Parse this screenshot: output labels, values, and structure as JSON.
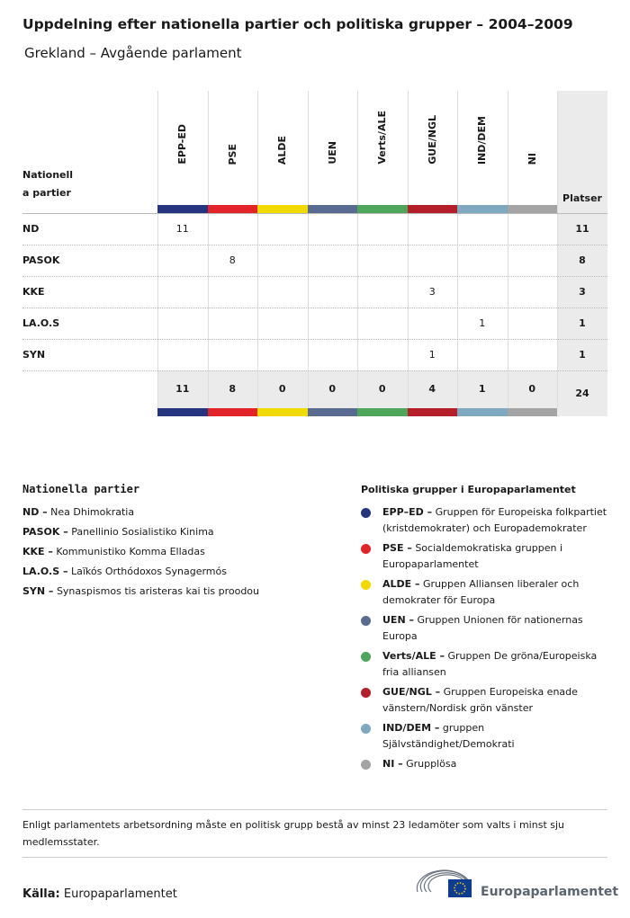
{
  "title": "Uppdelning efter nationella partier och politiska grupper – 2004–2009",
  "subtitle": "Grekland – Avgående parlament",
  "table": {
    "row_header": [
      "Nationell",
      "a partier"
    ],
    "total_header": "Platser",
    "groups": [
      {
        "abbr": "EPP-ED",
        "color": "#26357f"
      },
      {
        "abbr": "PSE",
        "color": "#e2242a"
      },
      {
        "abbr": "ALDE",
        "color": "#f0da00"
      },
      {
        "abbr": "UEN",
        "color": "#5a6b92"
      },
      {
        "abbr": "Verts/ALE",
        "color": "#4ea65a"
      },
      {
        "abbr": "GUE/NGL",
        "color": "#b51f29"
      },
      {
        "abbr": "IND/DEM",
        "color": "#7ea9c1"
      },
      {
        "abbr": "NI",
        "color": "#a4a4a4"
      }
    ],
    "rows": [
      {
        "name": "ND",
        "cells": [
          11,
          null,
          null,
          null,
          null,
          null,
          null,
          null
        ],
        "total": 11
      },
      {
        "name": "PASOK",
        "cells": [
          null,
          8,
          null,
          null,
          null,
          null,
          null,
          null
        ],
        "total": 8
      },
      {
        "name": "KKE",
        "cells": [
          null,
          null,
          null,
          null,
          null,
          3,
          null,
          null
        ],
        "total": 3
      },
      {
        "name": "LA.O.S",
        "cells": [
          null,
          null,
          null,
          null,
          null,
          null,
          1,
          null
        ],
        "total": 1
      },
      {
        "name": "SYN",
        "cells": [
          null,
          null,
          null,
          null,
          null,
          1,
          null,
          null
        ],
        "total": 1
      }
    ],
    "column_totals": [
      11,
      8,
      0,
      0,
      0,
      4,
      1,
      0
    ],
    "grand_total": 24
  },
  "legend_parties": {
    "heading": "Nationella partier",
    "items": [
      {
        "label": "ND –",
        "text": "Nea Dhimokratia"
      },
      {
        "label": "PASOK –",
        "text": "Panellinio Sosialistiko Kinima"
      },
      {
        "label": "KKE –",
        "text": "Kommunistiko Komma Elladas"
      },
      {
        "label": "LA.O.S –",
        "text": "Laïkós Orthódoxos Synagermós"
      },
      {
        "label": "SYN –",
        "text": "Synaspismos tis aristeras kai tis proodou"
      }
    ]
  },
  "legend_groups": {
    "heading": "Politiska grupper i Europaparlamentet",
    "items": [
      {
        "label": "EPP–ED –",
        "text": "Gruppen för Europeiska folkpartiet (kristdemokrater) och Europademokrater"
      },
      {
        "label": "PSE –",
        "text": "Socialdemokratiska gruppen i Europaparlamentet"
      },
      {
        "label": "ALDE –",
        "text": "Gruppen Alliansen liberaler och demokrater för Europa"
      },
      {
        "label": "UEN –",
        "text": "Gruppen Unionen för nationernas Europa"
      },
      {
        "label": "Verts/ALE –",
        "text": "Gruppen De gröna/Europeiska fria alliansen"
      },
      {
        "label": "GUE/NGL –",
        "text": "Gruppen Europeiska enade vänstern/Nordisk grön vänster"
      },
      {
        "label": "IND/DEM –",
        "text": "gruppen Självständighet/Demokrati"
      },
      {
        "label": "NI –",
        "text": "Grupplösa"
      }
    ]
  },
  "note": "Enligt parlamentets arbetsordning måste en politisk grupp bestå av minst 23 ledamöter som valts i minst sju medlemsstater.",
  "source": {
    "label": "Källa:",
    "text": "Europaparlamentet"
  },
  "logo_text": "Europaparlamentet"
}
